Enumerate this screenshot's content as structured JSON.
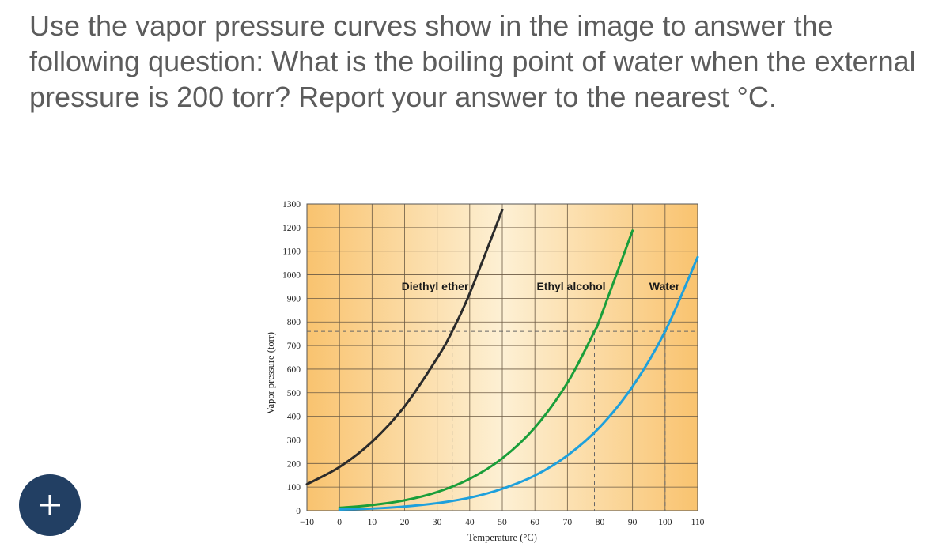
{
  "question": {
    "text": "Use the vapor pressure curves show in the image to answer the following question:  What is the boiling point of water when the external pressure is 200 torr?  Report your answer to the nearest °C."
  },
  "add_button": {
    "icon": "plus-icon",
    "color": "#223f63"
  },
  "chart_data": {
    "type": "line",
    "title": "",
    "xlabel": "Temperature (°C)",
    "ylabel": "Vapor pressure (torr)",
    "xlim": [
      -10,
      110
    ],
    "ylim": [
      0,
      1300
    ],
    "x_ticks": [
      -10,
      0,
      10,
      20,
      30,
      40,
      50,
      60,
      70,
      80,
      90,
      100,
      110
    ],
    "y_ticks": [
      0,
      100,
      200,
      300,
      400,
      500,
      600,
      700,
      800,
      900,
      1000,
      1100,
      1200,
      1300
    ],
    "grid": true,
    "reference_pressure": 760,
    "reference_temps": [
      34.6,
      78.3,
      100
    ],
    "series": [
      {
        "name": "Diethyl ether",
        "color": "#2b2b2b",
        "x": [
          -10,
          0,
          10,
          20,
          30,
          34.6,
          40,
          50
        ],
        "y": [
          112,
          185,
          292,
          442,
          647,
          760,
          921,
          1275
        ]
      },
      {
        "name": "Ethyl alcohol",
        "color": "#1a9e3a",
        "x": [
          0,
          10,
          20,
          30,
          40,
          50,
          60,
          70,
          78.3,
          80,
          90
        ],
        "y": [
          12,
          24,
          44,
          79,
          135,
          222,
          352,
          542,
          760,
          813,
          1187
        ]
      },
      {
        "name": "Water",
        "color": "#1ea0dc",
        "x": [
          0,
          10,
          20,
          30,
          40,
          50,
          60,
          70,
          80,
          90,
          100,
          110
        ],
        "y": [
          5,
          9,
          17.5,
          32,
          55,
          93,
          149,
          234,
          355,
          526,
          760,
          1075
        ]
      }
    ]
  }
}
